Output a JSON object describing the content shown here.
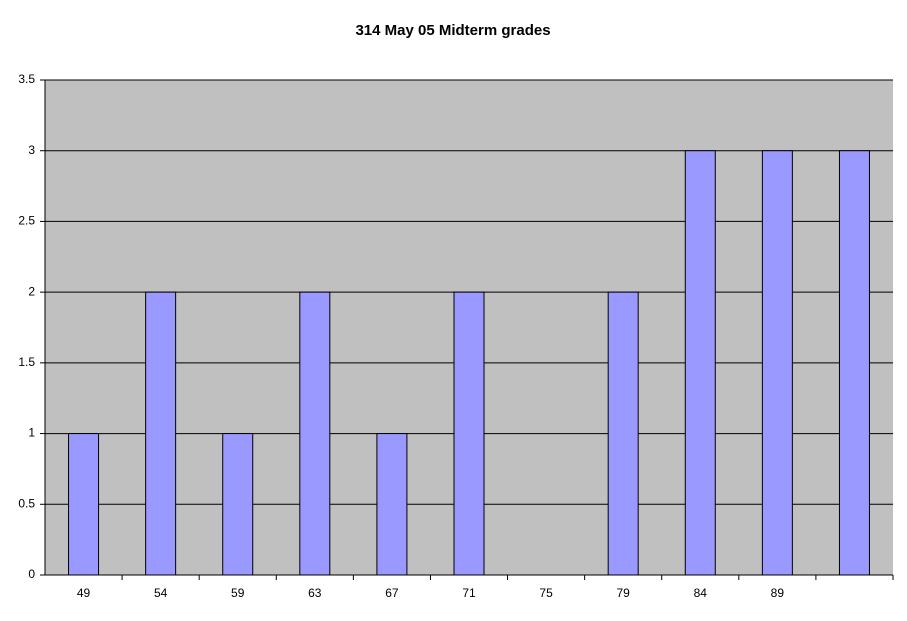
{
  "chart_data": {
    "type": "bar",
    "title": "314 May 05 Midterm grades",
    "categories": [
      "49",
      "54",
      "59",
      "63",
      "67",
      "71",
      "75",
      "79",
      "84",
      "89",
      null
    ],
    "values": [
      1,
      2,
      1,
      2,
      1,
      2,
      0,
      2,
      3,
      3,
      3
    ],
    "color": "#9999ff",
    "ylim": [
      0,
      3.5
    ],
    "yticks": [
      0,
      0.5,
      1,
      1.5,
      2,
      2.5,
      3,
      3.5
    ],
    "grid": true
  }
}
